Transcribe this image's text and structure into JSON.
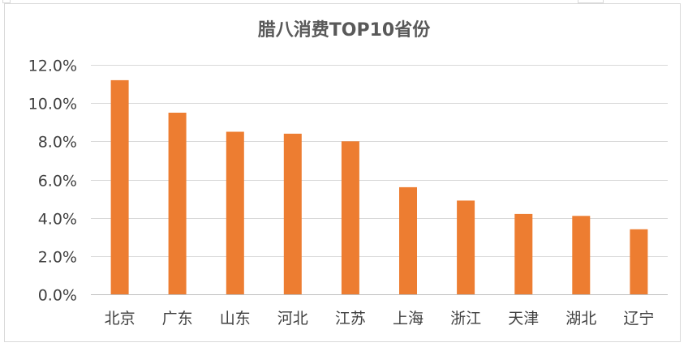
{
  "chart_data": {
    "type": "bar",
    "title": "腊八消费TOP10省份",
    "categories": [
      "北京",
      "广东",
      "山东",
      "河北",
      "江苏",
      "上海",
      "浙江",
      "天津",
      "湖北",
      "辽宁"
    ],
    "values": [
      11.2,
      9.5,
      8.5,
      8.4,
      8.0,
      5.6,
      4.9,
      4.2,
      4.1,
      3.4
    ],
    "ylim": [
      0,
      12
    ],
    "yticks": [
      0,
      2,
      4,
      6,
      8,
      10,
      12
    ],
    "ytick_labels": [
      "0.0%",
      "2.0%",
      "4.0%",
      "6.0%",
      "8.0%",
      "10.0%",
      "12.0%"
    ],
    "xlabel": "",
    "ylabel": "",
    "grid": true,
    "legend": "none",
    "bar_color": "#ed7d31",
    "grid_color": "#d9d9d9",
    "text_color": "#404040"
  }
}
